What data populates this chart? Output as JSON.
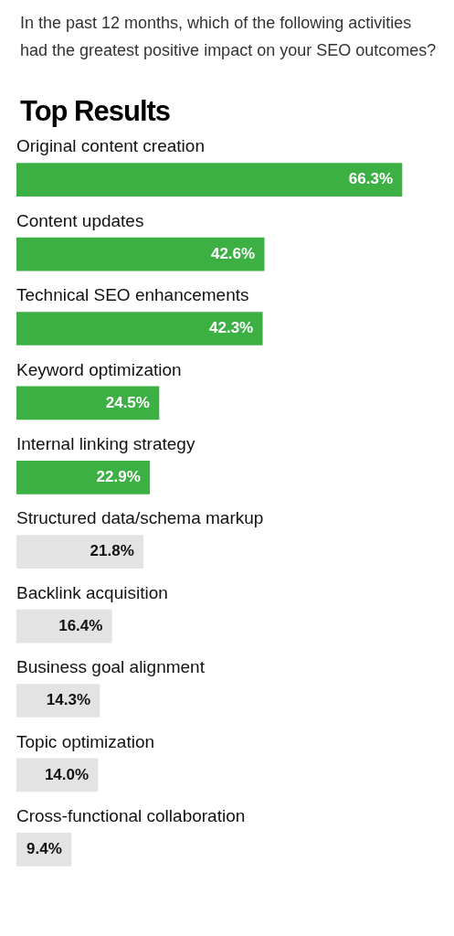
{
  "chart_data": {
    "type": "bar",
    "orientation": "horizontal",
    "title": "In the past 12 months, which of the following activities had the greatest positive impact on your SEO outcomes?",
    "subtitle": "Top Results",
    "categories": [
      "Original content creation",
      "Content updates",
      "Technical SEO enhancements",
      "Keyword optimization",
      "Internal linking strategy",
      "Structured data/schema markup",
      "Backlink acquisition",
      "Business goal alignment",
      "Topic optimization",
      "Cross-functional collaboration"
    ],
    "values": [
      66.3,
      42.6,
      42.3,
      24.5,
      22.9,
      21.8,
      16.4,
      14.3,
      14.0,
      9.4
    ],
    "value_labels": [
      "66.3%",
      "42.6%",
      "42.3%",
      "24.5%",
      "22.9%",
      "21.8%",
      "16.4%",
      "14.3%",
      "14.0%",
      "9.4%"
    ],
    "colors": [
      "#3cb043",
      "#3cb043",
      "#3cb043",
      "#3cb043",
      "#3cb043",
      "#e3e3e3",
      "#e3e3e3",
      "#e3e3e3",
      "#e3e3e3",
      "#e3e3e3"
    ],
    "legend": false
  }
}
